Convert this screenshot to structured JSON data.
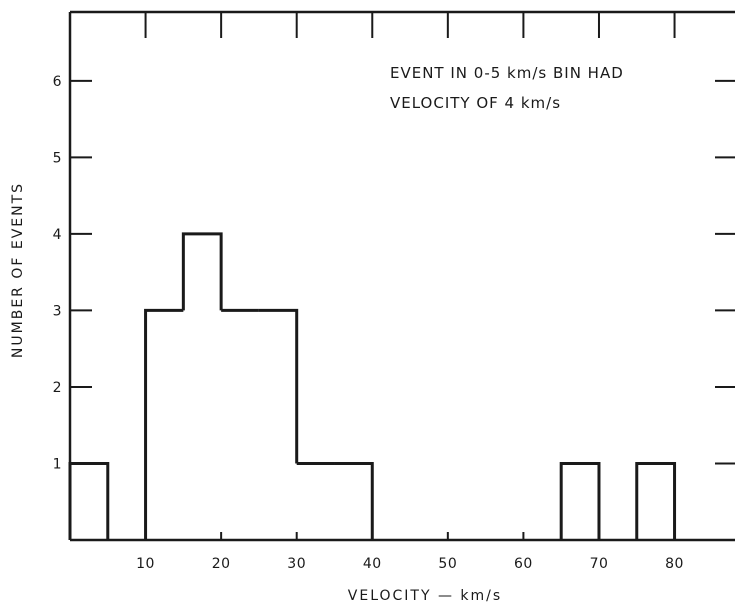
{
  "chart_data": {
    "type": "bar",
    "title": "",
    "xlabel": "VELOCITY — km/s",
    "ylabel": "NUMBER OF EVENTS",
    "annotation": [
      "EVENT IN 0-5 km/s BIN HAD",
      "VELOCITY OF 4 km/s"
    ],
    "bin_width": 5,
    "bins": [
      {
        "x0": 0,
        "x1": 5,
        "count": 1
      },
      {
        "x0": 5,
        "x1": 10,
        "count": 0
      },
      {
        "x0": 10,
        "x1": 15,
        "count": 3
      },
      {
        "x0": 15,
        "x1": 20,
        "count": 4
      },
      {
        "x0": 20,
        "x1": 25,
        "count": 3
      },
      {
        "x0": 25,
        "x1": 30,
        "count": 3
      },
      {
        "x0": 30,
        "x1": 35,
        "count": 1
      },
      {
        "x0": 35,
        "x1": 40,
        "count": 1
      },
      {
        "x0": 40,
        "x1": 45,
        "count": 0
      },
      {
        "x0": 45,
        "x1": 50,
        "count": 0
      },
      {
        "x0": 50,
        "x1": 55,
        "count": 0
      },
      {
        "x0": 55,
        "x1": 60,
        "count": 0
      },
      {
        "x0": 60,
        "x1": 65,
        "count": 0
      },
      {
        "x0": 65,
        "x1": 70,
        "count": 1
      },
      {
        "x0": 70,
        "x1": 75,
        "count": 0
      },
      {
        "x0": 75,
        "x1": 80,
        "count": 1
      },
      {
        "x0": 80,
        "x1": 85,
        "count": 0
      }
    ],
    "xlim": [
      0,
      88
    ],
    "ylim": [
      0,
      6.9
    ],
    "xticks": [
      10,
      20,
      30,
      40,
      50,
      60,
      70,
      80
    ],
    "xtick_labels": [
      "10",
      "20",
      "30",
      "40",
      "50",
      "60",
      "70",
      "80"
    ],
    "yticks": [
      1,
      2,
      3,
      4,
      5,
      6
    ],
    "ytick_labels": [
      "1",
      "2",
      "3",
      "4",
      "5",
      "6"
    ],
    "grid": false
  }
}
